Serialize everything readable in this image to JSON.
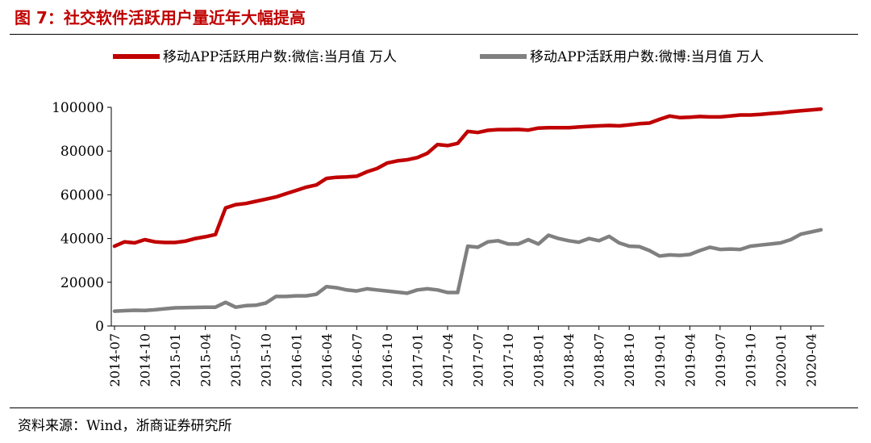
{
  "figure_title": "图 7：社交软件活跃用户量近年大幅提高",
  "source": "资料来源：Wind，浙商证券研究所",
  "chart_data": {
    "type": "line",
    "title": "",
    "xlabel": "",
    "ylabel": "",
    "ylim": [
      0,
      100000
    ],
    "yticks": [
      0,
      20000,
      40000,
      60000,
      80000,
      100000
    ],
    "ytick_labels": [
      "0",
      "20000",
      "40000",
      "60000",
      "80000",
      "100000"
    ],
    "xtick_labels": [
      "2014-07",
      "2014-10",
      "2015-01",
      "2015-04",
      "2015-07",
      "2015-10",
      "2016-01",
      "2016-04",
      "2016-07",
      "2016-10",
      "2017-01",
      "2017-04",
      "2017-07",
      "2017-10",
      "2018-01",
      "2018-04",
      "2018-07",
      "2018-10",
      "2019-01",
      "2019-04",
      "2019-07",
      "2019-10",
      "2020-01",
      "2020-04"
    ],
    "grid": false,
    "legend_position": "top",
    "x": [
      "2014-07",
      "2014-08",
      "2014-09",
      "2014-10",
      "2014-11",
      "2014-12",
      "2015-01",
      "2015-02",
      "2015-03",
      "2015-04",
      "2015-05",
      "2015-06",
      "2015-07",
      "2015-08",
      "2015-09",
      "2015-10",
      "2015-11",
      "2015-12",
      "2016-01",
      "2016-02",
      "2016-03",
      "2016-04",
      "2016-05",
      "2016-06",
      "2016-07",
      "2016-08",
      "2016-09",
      "2016-10",
      "2016-11",
      "2016-12",
      "2017-01",
      "2017-02",
      "2017-03",
      "2017-04",
      "2017-05",
      "2017-06",
      "2017-07",
      "2017-08",
      "2017-09",
      "2017-10",
      "2017-11",
      "2017-12",
      "2018-01",
      "2018-02",
      "2018-03",
      "2018-04",
      "2018-05",
      "2018-06",
      "2018-07",
      "2018-08",
      "2018-09",
      "2018-10",
      "2018-11",
      "2018-12",
      "2019-01",
      "2019-02",
      "2019-03",
      "2019-04",
      "2019-05",
      "2019-06",
      "2019-07",
      "2019-08",
      "2019-09",
      "2019-10",
      "2019-11",
      "2019-12",
      "2020-01",
      "2020-02",
      "2020-03",
      "2020-04",
      "2020-05"
    ],
    "series": [
      {
        "name": "移动APP活跃用户数:微信:当月值 万人",
        "color": "#c00000",
        "values": [
          36500,
          38500,
          38000,
          39500,
          38500,
          38200,
          38200,
          38800,
          40000,
          40800,
          41800,
          54000,
          55500,
          56000,
          57000,
          58000,
          59000,
          60500,
          62000,
          63500,
          64500,
          67500,
          68000,
          68200,
          68500,
          70500,
          72000,
          74500,
          75500,
          76000,
          77000,
          79000,
          83000,
          82500,
          83500,
          89000,
          88500,
          89500,
          89800,
          89800,
          89900,
          89600,
          90500,
          90700,
          90700,
          90700,
          91000,
          91300,
          91500,
          91700,
          91500,
          92000,
          92500,
          92800,
          94500,
          96000,
          95300,
          95500,
          95800,
          95600,
          95600,
          96000,
          96500,
          96500,
          96800,
          97200,
          97500,
          98000,
          98400,
          98800,
          99200
        ]
      },
      {
        "name": "移动APP活跃用户数:微博:当月值 万人",
        "color": "#808080",
        "values": [
          6800,
          7000,
          7200,
          7100,
          7400,
          7900,
          8300,
          8400,
          8500,
          8600,
          8600,
          10800,
          8600,
          9300,
          9500,
          10500,
          13500,
          13500,
          13800,
          13800,
          14500,
          18000,
          17500,
          16500,
          16000,
          17000,
          16500,
          16000,
          15500,
          15000,
          16500,
          17000,
          16500,
          15300,
          15300,
          36500,
          36000,
          38500,
          39000,
          37500,
          37500,
          39500,
          37500,
          41500,
          40000,
          39000,
          38300,
          40000,
          39000,
          41000,
          38000,
          36500,
          36300,
          34500,
          32000,
          32500,
          32300,
          32700,
          34500,
          36000,
          35000,
          35200,
          35000,
          36500,
          37000,
          37500,
          38000,
          39500,
          42000,
          43000,
          44000
        ]
      }
    ]
  }
}
